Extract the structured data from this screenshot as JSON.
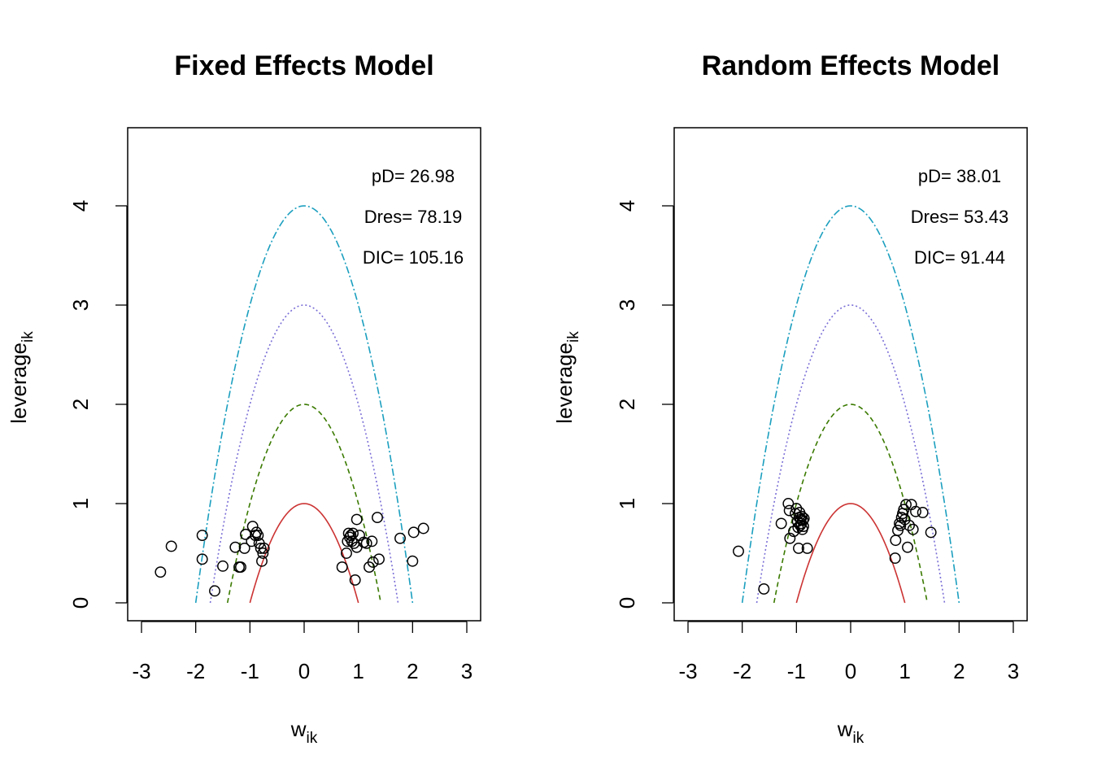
{
  "chart_data": [
    {
      "type": "scatter",
      "title": "Fixed Effects Model",
      "xlabel": "w",
      "xlabel_sub": "ik",
      "ylabel": "leverage",
      "ylabel_sub": "ik",
      "xlim": [
        -3,
        3
      ],
      "ylim": [
        0,
        4.7
      ],
      "x_ticks": [
        -3,
        -2,
        -1,
        0,
        1,
        2,
        3
      ],
      "y_ticks": [
        0,
        1,
        2,
        3,
        4
      ],
      "x_tick_labels": [
        "-3",
        "-2",
        "-1",
        "0",
        "1",
        "2",
        "3"
      ],
      "y_tick_labels": [
        "0",
        "1",
        "2",
        "3",
        "4"
      ],
      "annotations": [
        "pD= 26.98",
        "Dres= 78.19",
        "DIC= 105.16"
      ],
      "curves": [
        {
          "c": 1,
          "color": "#cc3333",
          "dash": "none"
        },
        {
          "c": 2,
          "color": "#3a7a00",
          "dash": "6,4"
        },
        {
          "c": 3,
          "color": "#7a6ed6",
          "dash": "2,3"
        },
        {
          "c": 4,
          "color": "#1b9fbf",
          "dash": "9,3,2,3"
        }
      ],
      "points": [
        [
          -2.65,
          0.31
        ],
        [
          -2.45,
          0.57
        ],
        [
          -1.88,
          0.68
        ],
        [
          -1.88,
          0.44
        ],
        [
          -1.65,
          0.12
        ],
        [
          -1.5,
          0.37
        ],
        [
          -1.27,
          0.56
        ],
        [
          -1.2,
          0.36
        ],
        [
          -1.17,
          0.36
        ],
        [
          -1.1,
          0.55
        ],
        [
          -1.08,
          0.69
        ],
        [
          -0.97,
          0.62
        ],
        [
          -0.95,
          0.77
        ],
        [
          -0.9,
          0.68
        ],
        [
          -0.88,
          0.71
        ],
        [
          -0.85,
          0.68
        ],
        [
          -0.83,
          0.6
        ],
        [
          -0.8,
          0.55
        ],
        [
          -0.78,
          0.42
        ],
        [
          -0.76,
          0.5
        ],
        [
          -0.74,
          0.55
        ],
        [
          0.7,
          0.36
        ],
        [
          0.78,
          0.5
        ],
        [
          0.8,
          0.62
        ],
        [
          0.82,
          0.7
        ],
        [
          0.84,
          0.66
        ],
        [
          0.86,
          0.68
        ],
        [
          0.88,
          0.62
        ],
        [
          0.9,
          0.7
        ],
        [
          0.92,
          0.6
        ],
        [
          0.94,
          0.23
        ],
        [
          0.97,
          0.56
        ],
        [
          0.97,
          0.84
        ],
        [
          1.02,
          0.68
        ],
        [
          1.1,
          0.61
        ],
        [
          1.15,
          0.6
        ],
        [
          1.2,
          0.36
        ],
        [
          1.25,
          0.62
        ],
        [
          1.27,
          0.41
        ],
        [
          1.35,
          0.86
        ],
        [
          1.38,
          0.44
        ],
        [
          1.77,
          0.65
        ],
        [
          2.0,
          0.42
        ],
        [
          2.02,
          0.71
        ],
        [
          2.2,
          0.75
        ]
      ]
    },
    {
      "type": "scatter",
      "title": "Random Effects Model",
      "xlabel": "w",
      "xlabel_sub": "ik",
      "ylabel": "leverage",
      "ylabel_sub": "ik",
      "xlim": [
        -3,
        3
      ],
      "ylim": [
        0,
        4.7
      ],
      "x_ticks": [
        -3,
        -2,
        -1,
        0,
        1,
        2,
        3
      ],
      "y_ticks": [
        0,
        1,
        2,
        3,
        4
      ],
      "x_tick_labels": [
        "-3",
        "-2",
        "-1",
        "0",
        "1",
        "2",
        "3"
      ],
      "y_tick_labels": [
        "0",
        "1",
        "2",
        "3",
        "4"
      ],
      "annotations": [
        "pD= 38.01",
        "Dres= 53.43",
        "DIC= 91.44"
      ],
      "curves": [
        {
          "c": 1,
          "color": "#cc3333",
          "dash": "none"
        },
        {
          "c": 2,
          "color": "#3a7a00",
          "dash": "6,4"
        },
        {
          "c": 3,
          "color": "#7a6ed6",
          "dash": "2,3"
        },
        {
          "c": 4,
          "color": "#1b9fbf",
          "dash": "9,3,2,3"
        }
      ],
      "points": [
        [
          -2.07,
          0.52
        ],
        [
          -1.6,
          0.14
        ],
        [
          -1.28,
          0.8
        ],
        [
          -1.15,
          1.0
        ],
        [
          -1.13,
          0.93
        ],
        [
          -1.12,
          0.65
        ],
        [
          -1.05,
          0.72
        ],
        [
          -1.02,
          0.9
        ],
        [
          -1.0,
          0.95
        ],
        [
          -0.98,
          0.82
        ],
        [
          -0.97,
          0.76
        ],
        [
          -0.96,
          0.55
        ],
        [
          -0.95,
          0.86
        ],
        [
          -0.94,
          0.91
        ],
        [
          -0.93,
          0.78
        ],
        [
          -0.92,
          0.84
        ],
        [
          -0.91,
          0.8
        ],
        [
          -0.9,
          0.87
        ],
        [
          -0.89,
          0.74
        ],
        [
          -0.88,
          0.83
        ],
        [
          -0.87,
          0.77
        ],
        [
          -0.86,
          0.85
        ],
        [
          -0.8,
          0.55
        ],
        [
          0.82,
          0.45
        ],
        [
          0.83,
          0.63
        ],
        [
          0.87,
          0.73
        ],
        [
          0.9,
          0.8
        ],
        [
          0.92,
          0.78
        ],
        [
          0.94,
          0.86
        ],
        [
          0.96,
          0.9
        ],
        [
          0.98,
          0.94
        ],
        [
          1.0,
          0.84
        ],
        [
          1.02,
          0.99
        ],
        [
          1.05,
          0.56
        ],
        [
          1.08,
          0.78
        ],
        [
          1.12,
          0.99
        ],
        [
          1.15,
          0.74
        ],
        [
          1.2,
          0.92
        ],
        [
          1.33,
          0.91
        ],
        [
          1.48,
          0.71
        ]
      ]
    }
  ]
}
